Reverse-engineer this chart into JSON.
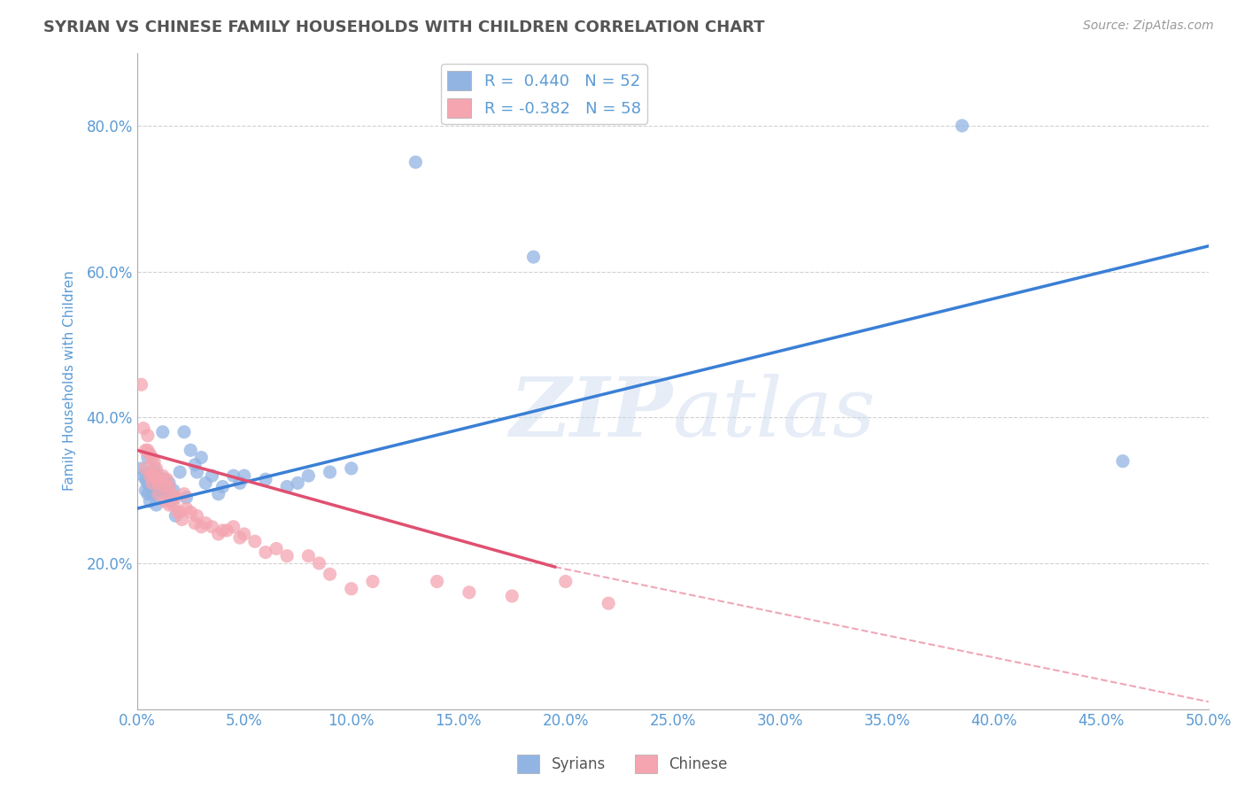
{
  "title": "SYRIAN VS CHINESE FAMILY HOUSEHOLDS WITH CHILDREN CORRELATION CHART",
  "source": "Source: ZipAtlas.com",
  "ylabel": "Family Households with Children",
  "watermark": "ZIPatlas",
  "legend_syrian": "R =  0.440   N = 52",
  "legend_chinese": "R = -0.382   N = 58",
  "xlim": [
    0.0,
    0.5
  ],
  "ylim": [
    0.0,
    0.9
  ],
  "xticks": [
    0.0,
    0.05,
    0.1,
    0.15,
    0.2,
    0.25,
    0.3,
    0.35,
    0.4,
    0.45,
    0.5
  ],
  "yticks": [
    0.2,
    0.4,
    0.6,
    0.8
  ],
  "syrian_color": "#92b4e3",
  "chinese_color": "#f4a5b0",
  "syrian_line_color": "#3a7fd5",
  "chinese_line_color": "#e05070",
  "title_color": "#555555",
  "label_color": "#5b9bd5",
  "background_color": "#ffffff",
  "grid_color": "#cccccc",
  "syrian_scatter": [
    [
      0.002,
      0.33
    ],
    [
      0.003,
      0.32
    ],
    [
      0.004,
      0.315
    ],
    [
      0.004,
      0.3
    ],
    [
      0.005,
      0.345
    ],
    [
      0.005,
      0.31
    ],
    [
      0.005,
      0.295
    ],
    [
      0.006,
      0.32
    ],
    [
      0.006,
      0.305
    ],
    [
      0.006,
      0.285
    ],
    [
      0.007,
      0.325
    ],
    [
      0.007,
      0.305
    ],
    [
      0.007,
      0.295
    ],
    [
      0.008,
      0.33
    ],
    [
      0.008,
      0.31
    ],
    [
      0.009,
      0.3
    ],
    [
      0.009,
      0.28
    ],
    [
      0.01,
      0.32
    ],
    [
      0.01,
      0.295
    ],
    [
      0.011,
      0.31
    ],
    [
      0.012,
      0.38
    ],
    [
      0.012,
      0.3
    ],
    [
      0.013,
      0.315
    ],
    [
      0.014,
      0.295
    ],
    [
      0.015,
      0.31
    ],
    [
      0.016,
      0.285
    ],
    [
      0.017,
      0.3
    ],
    [
      0.018,
      0.265
    ],
    [
      0.02,
      0.325
    ],
    [
      0.022,
      0.38
    ],
    [
      0.023,
      0.29
    ],
    [
      0.025,
      0.355
    ],
    [
      0.027,
      0.335
    ],
    [
      0.028,
      0.325
    ],
    [
      0.03,
      0.345
    ],
    [
      0.032,
      0.31
    ],
    [
      0.035,
      0.32
    ],
    [
      0.038,
      0.295
    ],
    [
      0.04,
      0.305
    ],
    [
      0.045,
      0.32
    ],
    [
      0.048,
      0.31
    ],
    [
      0.05,
      0.32
    ],
    [
      0.06,
      0.315
    ],
    [
      0.07,
      0.305
    ],
    [
      0.075,
      0.31
    ],
    [
      0.08,
      0.32
    ],
    [
      0.09,
      0.325
    ],
    [
      0.1,
      0.33
    ],
    [
      0.13,
      0.75
    ],
    [
      0.185,
      0.62
    ],
    [
      0.385,
      0.8
    ],
    [
      0.46,
      0.34
    ]
  ],
  "chinese_scatter": [
    [
      0.002,
      0.445
    ],
    [
      0.003,
      0.385
    ],
    [
      0.004,
      0.355
    ],
    [
      0.004,
      0.33
    ],
    [
      0.005,
      0.375
    ],
    [
      0.005,
      0.355
    ],
    [
      0.006,
      0.35
    ],
    [
      0.006,
      0.32
    ],
    [
      0.007,
      0.345
    ],
    [
      0.007,
      0.325
    ],
    [
      0.007,
      0.31
    ],
    [
      0.008,
      0.34
    ],
    [
      0.008,
      0.32
    ],
    [
      0.009,
      0.33
    ],
    [
      0.009,
      0.315
    ],
    [
      0.01,
      0.31
    ],
    [
      0.01,
      0.295
    ],
    [
      0.011,
      0.315
    ],
    [
      0.012,
      0.32
    ],
    [
      0.013,
      0.305
    ],
    [
      0.013,
      0.285
    ],
    [
      0.014,
      0.315
    ],
    [
      0.015,
      0.305
    ],
    [
      0.015,
      0.28
    ],
    [
      0.016,
      0.295
    ],
    [
      0.017,
      0.28
    ],
    [
      0.018,
      0.29
    ],
    [
      0.019,
      0.27
    ],
    [
      0.02,
      0.27
    ],
    [
      0.021,
      0.26
    ],
    [
      0.022,
      0.295
    ],
    [
      0.023,
      0.275
    ],
    [
      0.025,
      0.27
    ],
    [
      0.027,
      0.255
    ],
    [
      0.028,
      0.265
    ],
    [
      0.03,
      0.25
    ],
    [
      0.032,
      0.255
    ],
    [
      0.035,
      0.25
    ],
    [
      0.038,
      0.24
    ],
    [
      0.04,
      0.245
    ],
    [
      0.042,
      0.245
    ],
    [
      0.045,
      0.25
    ],
    [
      0.048,
      0.235
    ],
    [
      0.05,
      0.24
    ],
    [
      0.055,
      0.23
    ],
    [
      0.06,
      0.215
    ],
    [
      0.065,
      0.22
    ],
    [
      0.07,
      0.21
    ],
    [
      0.08,
      0.21
    ],
    [
      0.085,
      0.2
    ],
    [
      0.09,
      0.185
    ],
    [
      0.1,
      0.165
    ],
    [
      0.11,
      0.175
    ],
    [
      0.14,
      0.175
    ],
    [
      0.155,
      0.16
    ],
    [
      0.175,
      0.155
    ],
    [
      0.2,
      0.175
    ],
    [
      0.22,
      0.145
    ]
  ],
  "syrian_regline": [
    [
      0.0,
      0.275
    ],
    [
      0.5,
      0.635
    ]
  ],
  "chinese_regline_solid": [
    [
      0.0,
      0.355
    ],
    [
      0.195,
      0.195
    ]
  ],
  "chinese_regline_dashed": [
    [
      0.195,
      0.195
    ],
    [
      0.5,
      0.01
    ]
  ]
}
